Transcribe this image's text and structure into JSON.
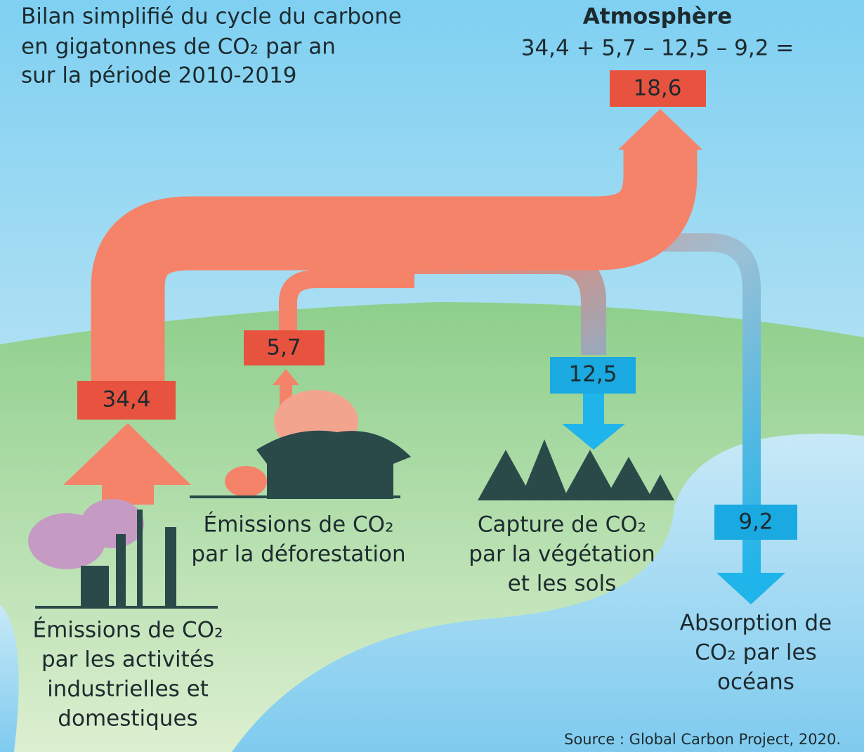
{
  "title": [
    "Bilan simplifié du cycle du carbone",
    "en gigatonnes de CO₂ par an",
    "sur la période 2010-2019"
  ],
  "atmosphere": {
    "heading": "Atmosphère",
    "equation": "34,4 + 5,7 – 12,5 – 9,2 =",
    "result": "18,6"
  },
  "flows": [
    {
      "value": "34,4",
      "label": [
        "Émissions de CO₂",
        "par les activités",
        "industrielles et",
        "domestiques"
      ]
    },
    {
      "value": "5,7",
      "label": [
        "Émissions de CO₂",
        "par la déforestation"
      ]
    },
    {
      "value": "12,5",
      "label": [
        "Capture de CO₂",
        "par la végétation",
        "et les sols"
      ]
    },
    {
      "value": "9,2",
      "label": [
        "Absorption de",
        "CO₂ par les",
        "océans"
      ]
    }
  ],
  "source": "Source : Global Carbon Project, 2020."
}
